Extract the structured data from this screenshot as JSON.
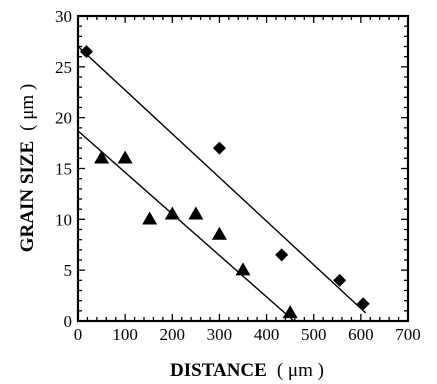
{
  "chart_data": {
    "type": "scatter",
    "title": "",
    "xlabel": "DISTANCE",
    "xlabel_unit": "( μm )",
    "ylabel": "GRAIN SIZE",
    "ylabel_unit": "( μm )",
    "xlim": [
      0,
      700
    ],
    "ylim": [
      0,
      30
    ],
    "xticks": [
      0,
      100,
      200,
      300,
      400,
      500,
      600,
      700
    ],
    "yticks": [
      0,
      5,
      10,
      15,
      20,
      25,
      30
    ],
    "grid": false,
    "legend": "none",
    "series": [
      {
        "marker": "diamond",
        "color": "#000000",
        "points": [
          {
            "x": 18,
            "y": 26.5
          },
          {
            "x": 300,
            "y": 17
          },
          {
            "x": 432,
            "y": 6.5
          },
          {
            "x": 555,
            "y": 4
          },
          {
            "x": 605,
            "y": 1.7
          }
        ],
        "fit_line": {
          "x": [
            0,
            610
          ],
          "y": [
            27,
            0.8
          ]
        }
      },
      {
        "marker": "triangle",
        "color": "#000000",
        "points": [
          {
            "x": 50,
            "y": 16
          },
          {
            "x": 100,
            "y": 16
          },
          {
            "x": 152,
            "y": 10
          },
          {
            "x": 200,
            "y": 10.5
          },
          {
            "x": 250,
            "y": 10.5
          },
          {
            "x": 300,
            "y": 8.5
          },
          {
            "x": 350,
            "y": 5
          },
          {
            "x": 450,
            "y": 0.8
          }
        ],
        "fit_line": {
          "x": [
            0,
            458
          ],
          "y": [
            18.7,
            0
          ]
        }
      }
    ]
  }
}
